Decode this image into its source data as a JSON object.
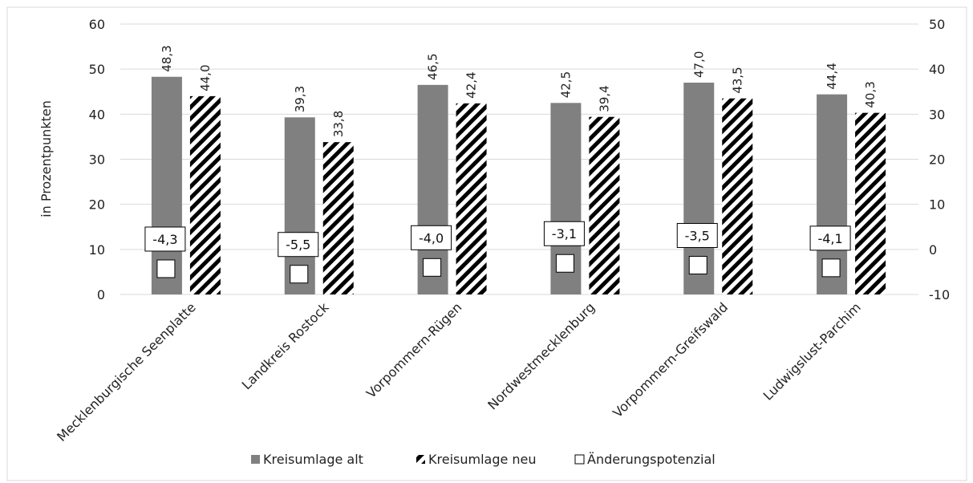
{
  "chart_data": {
    "type": "bar",
    "categories": [
      "Mecklenburgische Seenplatte",
      "Landkreis Rostock",
      "Vorpommern-Rügen",
      "Nordwestmecklenburg",
      "Vorpommern-Greifswald",
      "Ludwigslust-Parchim"
    ],
    "series": [
      {
        "name": "Kreisumlage alt",
        "axis": "left",
        "values": [
          48.3,
          39.3,
          46.5,
          42.5,
          47.0,
          44.4
        ],
        "labels": [
          "48,3",
          "39,3",
          "46,5",
          "42,5",
          "47,0",
          "44,4"
        ],
        "color": "#808080",
        "pattern": "solid"
      },
      {
        "name": "Kreisumlage neu",
        "axis": "left",
        "values": [
          44.0,
          33.8,
          42.4,
          39.4,
          43.5,
          40.3
        ],
        "labels": [
          "44,0",
          "33,8",
          "42,4",
          "39,4",
          "43,5",
          "40,3"
        ],
        "color": "#000000",
        "pattern": "diagonal-stripes"
      },
      {
        "name": "Änderungspotenzial",
        "axis": "right",
        "type": "marker",
        "values": [
          -4.3,
          -5.5,
          -4.0,
          -3.1,
          -3.5,
          -4.1
        ],
        "labels": [
          "-4,3",
          "-5,5",
          "-4,0",
          "-3,1",
          "-3,5",
          "-4,1"
        ],
        "color": "#ffffff"
      }
    ],
    "ylabel": "in Prozentpunkten",
    "ylim": [
      0,
      60
    ],
    "yticks": [
      "0",
      "10",
      "20",
      "30",
      "40",
      "50",
      "60"
    ],
    "y2lim": [
      -10,
      50
    ],
    "y2ticks": [
      "-10",
      "0",
      "10",
      "20",
      "30",
      "40",
      "50"
    ],
    "grid": true,
    "legend_position": "bottom"
  }
}
